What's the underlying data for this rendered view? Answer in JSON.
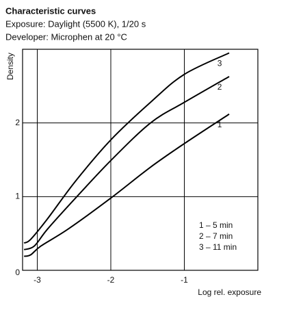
{
  "chart_data": {
    "type": "line",
    "title": "Characteristic curves",
    "subtitle": [
      "Exposure: Daylight (5500 K), 1/20 s",
      "Developer:  Microphen at 20 °C"
    ],
    "x_label": "Log rel. exposure",
    "y_label": "Density",
    "xlim": [
      -3.2,
      0
    ],
    "ylim": [
      0,
      3
    ],
    "xticks": [
      -3,
      -2,
      -1
    ],
    "yticks": [
      0,
      1,
      2
    ],
    "grid": true,
    "series": [
      {
        "name": "1",
        "label": "1 – 5 min",
        "color": "#000000",
        "x": [
          -3.18,
          -3.09,
          -2.95,
          -2.58,
          -2.0,
          -1.46,
          -1.0,
          -0.39
        ],
        "values": [
          0.19,
          0.21,
          0.33,
          0.56,
          0.98,
          1.4,
          1.72,
          2.12
        ]
      },
      {
        "name": "2",
        "label": "2 – 7 min",
        "color": "#000000",
        "x": [
          -3.18,
          -3.04,
          -2.86,
          -2.48,
          -2.0,
          -1.46,
          -1.0,
          -0.39
        ],
        "values": [
          0.28,
          0.33,
          0.56,
          0.98,
          1.49,
          2.0,
          2.28,
          2.63
        ]
      },
      {
        "name": "3",
        "label": "3 – 11 min",
        "color": "#000000",
        "x": [
          -3.18,
          -3.09,
          -2.86,
          -2.48,
          -2.0,
          -1.46,
          -1.0,
          -0.39
        ],
        "values": [
          0.37,
          0.42,
          0.7,
          1.21,
          1.77,
          2.28,
          2.66,
          2.95
        ]
      }
    ]
  }
}
